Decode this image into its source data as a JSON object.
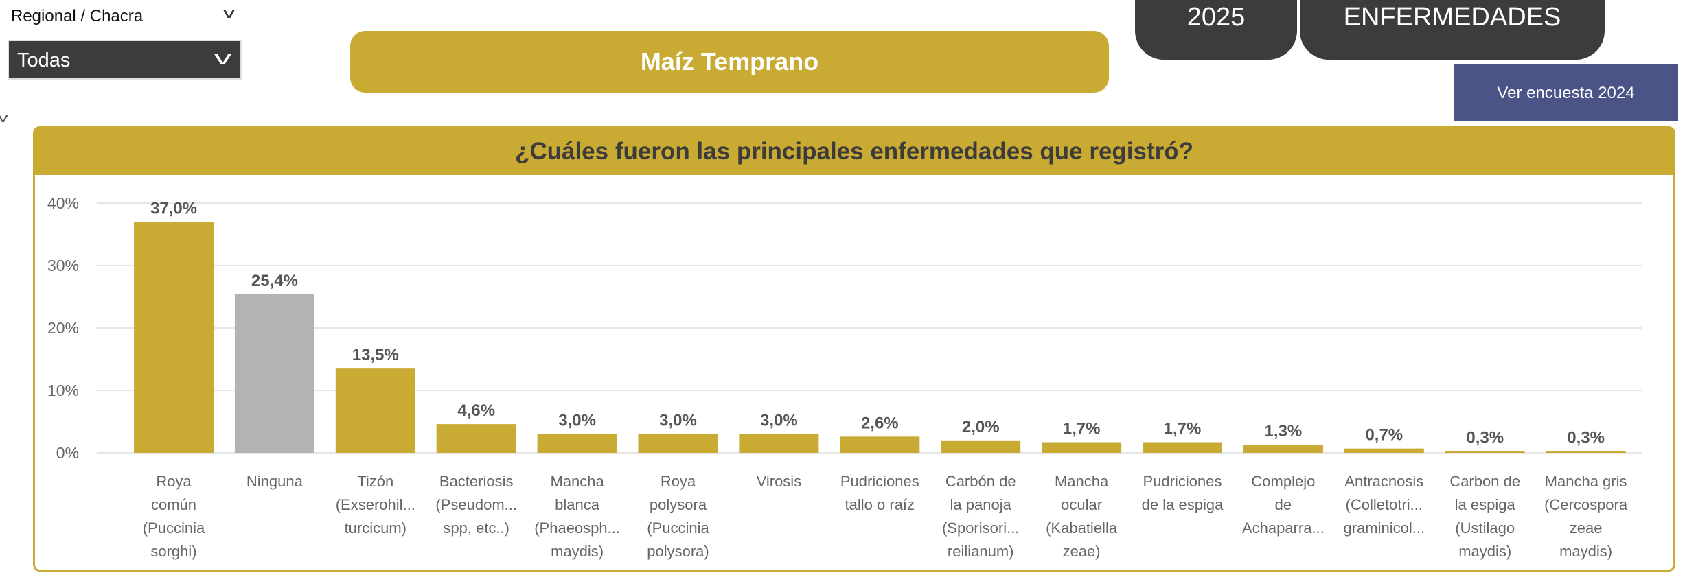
{
  "filter": {
    "label": "Regional / Chacra",
    "selected": "Todas"
  },
  "crop_title": "Maíz Temprano",
  "tabs": [
    {
      "label": "2025"
    },
    {
      "label": "ENFERMEDADES"
    }
  ],
  "ver_button": "Ver encuesta 2024",
  "colors": {
    "gold": "#c9aa33",
    "dark": "#3d3c3a",
    "blue": "#4b5486",
    "grey_bar": "#b3b3b3"
  },
  "chart_data": {
    "type": "bar",
    "title": "¿Cuáles fueron las principales enfermedades que registró?",
    "ylim": [
      0,
      40
    ],
    "yticks": [
      "0%",
      "10%",
      "20%",
      "30%",
      "40%"
    ],
    "ytick_values": [
      0,
      10,
      20,
      30,
      40
    ],
    "grid": true,
    "categories": [
      [
        "Roya",
        "común",
        "(Puccinia",
        "sorghi)"
      ],
      [
        "Ninguna"
      ],
      [
        "Tizón",
        "(Exserohil...",
        "turcicum)"
      ],
      [
        "Bacteriosis",
        "(Pseudom...",
        "spp, etc..)"
      ],
      [
        "Mancha",
        "blanca",
        "(Phaeosph...",
        "maydis)"
      ],
      [
        "Roya",
        "polysora",
        "(Puccinia",
        "polysora)"
      ],
      [
        "Virosis"
      ],
      [
        "Pudriciones",
        "tallo o raíz"
      ],
      [
        "Carbón de",
        "la panoja",
        "(Sporisori...",
        "reilianum)"
      ],
      [
        "Mancha",
        "ocular",
        "(Kabatiella",
        "zeae)"
      ],
      [
        "Pudriciones",
        "de la espiga"
      ],
      [
        "Complejo",
        "de",
        "Achaparra..."
      ],
      [
        "Antracnosis",
        "(Colletotri...",
        "graminicol..."
      ],
      [
        "Carbon de",
        "la espiga",
        "(Ustilago",
        "maydis)"
      ],
      [
        "Mancha gris",
        "(Cercospora",
        "zeae",
        "maydis)"
      ]
    ],
    "values": [
      37.0,
      25.4,
      13.5,
      4.6,
      3.0,
      3.0,
      3.0,
      2.6,
      2.0,
      1.7,
      1.7,
      1.3,
      0.7,
      0.3,
      0.3
    ],
    "data_labels": [
      "37,0%",
      "25,4%",
      "13,5%",
      "4,6%",
      "3,0%",
      "3,0%",
      "3,0%",
      "2,6%",
      "2,0%",
      "1,7%",
      "1,7%",
      "1,3%",
      "0,7%",
      "0,3%",
      "0,3%"
    ],
    "bar_colors": [
      "#c9aa33",
      "#b3b3b3",
      "#c9aa33",
      "#c9aa33",
      "#c9aa33",
      "#c9aa33",
      "#c9aa33",
      "#c9aa33",
      "#c9aa33",
      "#c9aa33",
      "#c9aa33",
      "#c9aa33",
      "#c9aa33",
      "#c9aa33",
      "#c9aa33"
    ]
  }
}
